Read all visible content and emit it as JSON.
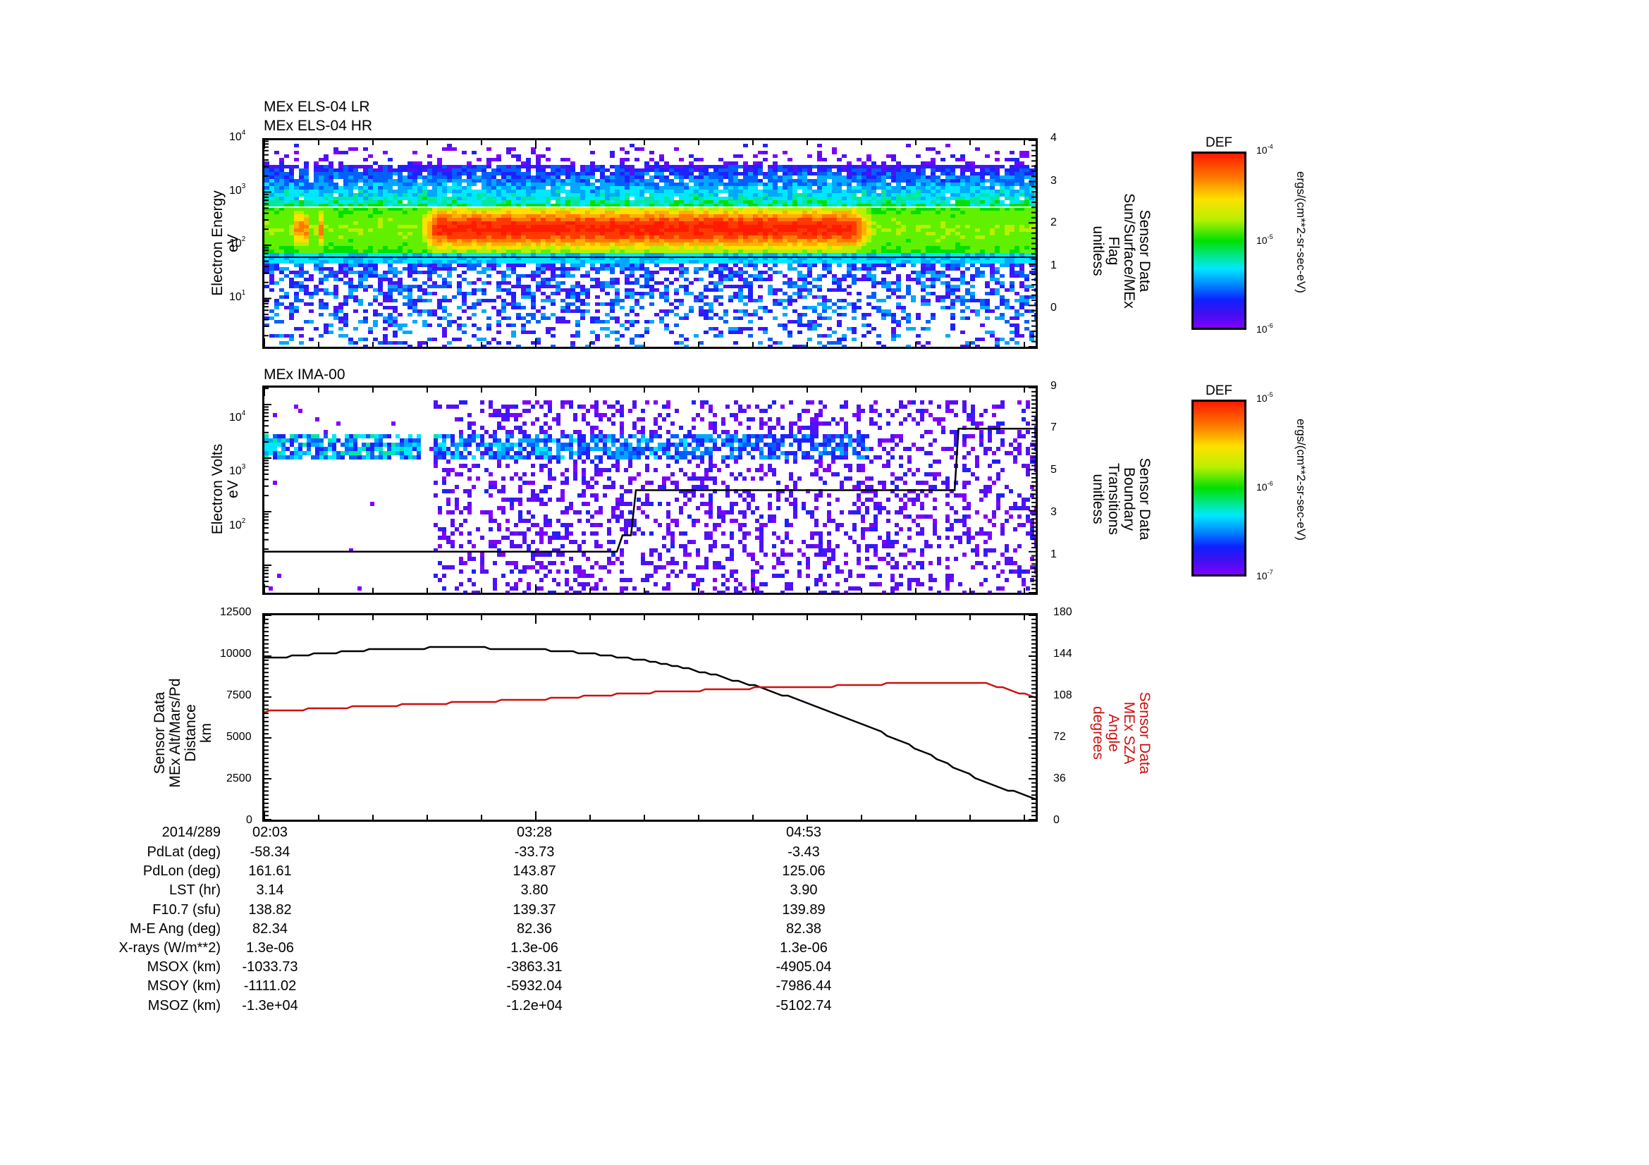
{
  "panels": {
    "p1": {
      "titles": [
        "MEx ELS-04 LR",
        "MEx ELS-04 HR"
      ],
      "ylabel_left": [
        "Electron Energy",
        "eV"
      ],
      "ylabel_right": [
        "Sensor Data",
        "Sun/Surface/MEx",
        "Flag",
        "unitless"
      ],
      "left_ticks": [
        {
          "base": "10",
          "exp": "4"
        },
        {
          "base": "10",
          "exp": "3"
        },
        {
          "base": "10",
          "exp": "2"
        },
        {
          "base": "10",
          "exp": "1"
        }
      ],
      "right_ticks": [
        "4",
        "3",
        "2",
        "1",
        "0"
      ]
    },
    "p2": {
      "titles": [
        "MEx IMA-00"
      ],
      "ylabel_left": [
        "Electron Volts",
        "eV"
      ],
      "ylabel_right": [
        "Sensor Data",
        "Boundary",
        "Transitions",
        "unitless"
      ],
      "left_ticks": [
        {
          "base": "10",
          "exp": "4"
        },
        {
          "base": "10",
          "exp": "3"
        },
        {
          "base": "10",
          "exp": "2"
        }
      ],
      "right_ticks": [
        "9",
        "7",
        "5",
        "3",
        "1"
      ]
    },
    "p3": {
      "ylabel_left": [
        "Sensor Data",
        "MEx Alt/Mars/Pd",
        "Distance",
        "km"
      ],
      "ylabel_right": [
        "Sensor Data",
        "MEx SZA",
        "Angle",
        "degrees"
      ],
      "left_ticks": [
        "12500",
        "10000",
        "7500",
        "5000",
        "2500",
        "0"
      ],
      "right_ticks": [
        "180",
        "144",
        "108",
        "72",
        "36",
        "0"
      ]
    }
  },
  "colorbars": [
    {
      "title": "DEF",
      "top": {
        "base": "10",
        "exp": "-4"
      },
      "mid": {
        "base": "10",
        "exp": "-5"
      },
      "bottom": {
        "base": "10",
        "exp": "-6"
      },
      "unit": "ergs/(cm**2-sr-sec-eV)"
    },
    {
      "title": "DEF",
      "top": {
        "base": "10",
        "exp": "-5"
      },
      "mid": {
        "base": "10",
        "exp": "-6"
      },
      "bottom": {
        "base": "10",
        "exp": "-7"
      },
      "unit": "ergs/(cm**2-sr-sec-eV)"
    }
  ],
  "ephemeris": {
    "header_label": "2014/289",
    "times": [
      "02:03",
      "03:28",
      "04:53"
    ],
    "rows": [
      {
        "label": "PdLat (deg)",
        "values": [
          "-58.34",
          "-33.73",
          "-3.43"
        ]
      },
      {
        "label": "PdLon (deg)",
        "values": [
          "161.61",
          "143.87",
          "125.06"
        ]
      },
      {
        "label": "LST (hr)",
        "values": [
          "3.14",
          "3.80",
          "3.90"
        ]
      },
      {
        "label": "F10.7 (sfu)",
        "values": [
          "138.82",
          "139.37",
          "139.89"
        ]
      },
      {
        "label": "M-E Ang (deg)",
        "values": [
          "82.34",
          "82.36",
          "82.38"
        ]
      },
      {
        "label": "X-rays (W/m**2)",
        "values": [
          "1.3e-06",
          "1.3e-06",
          "1.3e-06"
        ]
      },
      {
        "label": "MSOX (km)",
        "values": [
          "-1033.73",
          "-3863.31",
          "-4905.04"
        ]
      },
      {
        "label": "MSOY (km)",
        "values": [
          "-1111.02",
          "-5932.04",
          "-7986.44"
        ]
      },
      {
        "label": "MSOZ (km)",
        "values": [
          "-1.3e+04",
          "-1.2e+04",
          "-5102.74"
        ]
      }
    ]
  },
  "colors": {
    "altitude_line": "#000000",
    "sza_line": "#cc1111",
    "axis": "#000000"
  },
  "chart_data": [
    {
      "type": "heatmap",
      "title": "MEx ELS-04 LR / MEx ELS-04 HR",
      "xlabel": "UT (2014/289)",
      "x_ticks": [
        "02:03",
        "03:28",
        "04:53"
      ],
      "ylabel": "Electron Energy (eV)",
      "y_scale": "log",
      "ylim": [
        1.5,
        10000
      ],
      "y_ticks": [
        "10^1",
        "10^2",
        "10^3",
        "10^4"
      ],
      "colorbar": {
        "label": "DEF ergs/(cm**2-sr-sec-eV)",
        "range": [
          1e-06,
          0.0001
        ],
        "scale": "log"
      },
      "features": [
        {
          "desc": "broad green band ~7-150 eV across entire interval"
        },
        {
          "desc": "red/orange peak flux band ~20-50 eV",
          "x_range": [
            "~02:50",
            "~05:10"
          ]
        },
        {
          "desc": "yellow spikes near start (~02:08, ~02:12) at ~20-60 eV"
        },
        {
          "desc": "scattered blue/purple counts below 7 eV and above 150 eV"
        }
      ],
      "overlay_right_axis": {
        "label": "Sensor Data Sun/Surface/MEx Flag (unitless)",
        "ylim": [
          -1,
          4
        ],
        "ticks": [
          "0",
          "1",
          "2",
          "3",
          "4"
        ],
        "lines": [
          {
            "name": "flag level",
            "value": 0
          },
          {
            "name": "flag level (white)",
            "value": 1.65
          }
        ]
      }
    },
    {
      "type": "heatmap",
      "title": "MEx IMA-00",
      "xlabel": "UT (2014/289)",
      "x_ticks": [
        "02:03",
        "03:28",
        "04:53"
      ],
      "ylabel": "Electron Volts (eV)",
      "y_scale": "log",
      "ylim": [
        10,
        30000
      ],
      "y_ticks": [
        "10^2",
        "10^3",
        "10^4"
      ],
      "colorbar": {
        "label": "DEF ergs/(cm**2-sr-sec-eV)",
        "range": [
          1e-07,
          1e-05
        ],
        "scale": "log"
      },
      "features": [
        {
          "desc": "blue/cyan band ~500-2000 eV",
          "x_range": [
            "02:03",
            "~04:40"
          ]
        },
        {
          "desc": "sparse purple scattered counts across 20-20000 eV after ~03:00"
        }
      ],
      "overlay_right_axis": {
        "label": "Sensor Data Boundary Transitions (unitless)",
        "ylim": [
          -1,
          9
        ],
        "ticks": [
          "1",
          "3",
          "5",
          "7",
          "9"
        ],
        "step_line": {
          "x": [
            "02:03",
            "~03:53",
            "~03:55",
            "~03:58",
            "~05:20",
            "~05:22",
            "~05:35"
          ],
          "y": [
            1,
            1,
            1.8,
            4,
            4,
            7,
            7
          ]
        }
      }
    },
    {
      "type": "line",
      "xlabel": "UT (2014/289)",
      "x": [
        "02:03",
        "02:20",
        "02:37",
        "02:54",
        "03:11",
        "03:28",
        "03:45",
        "04:02",
        "04:19",
        "04:36",
        "04:53",
        "05:10",
        "05:27",
        "05:44",
        "05:51"
      ],
      "series": [
        {
          "name": "MEx Alt/Mars/Pd Distance (km)",
          "axis": "left",
          "color": "#000000",
          "values": [
            9850,
            10150,
            10400,
            10500,
            10500,
            10400,
            10150,
            9700,
            9000,
            8100,
            6950,
            5650,
            4100,
            2400,
            1250
          ]
        },
        {
          "name": "MEx SZA Angle (degrees)",
          "axis": "right",
          "color": "#cc1111",
          "values": [
            95,
            98,
            100,
            102,
            104,
            106,
            109,
            112,
            114,
            116,
            117,
            119,
            121,
            121,
            108
          ]
        }
      ],
      "ylabel_left": "Sensor Data MEx Alt/Mars/Pd Distance km",
      "ylim_left": [
        0,
        12500
      ],
      "ylabel_right": "Sensor Data MEx SZA Angle degrees",
      "ylim_right": [
        0,
        180
      ]
    }
  ]
}
